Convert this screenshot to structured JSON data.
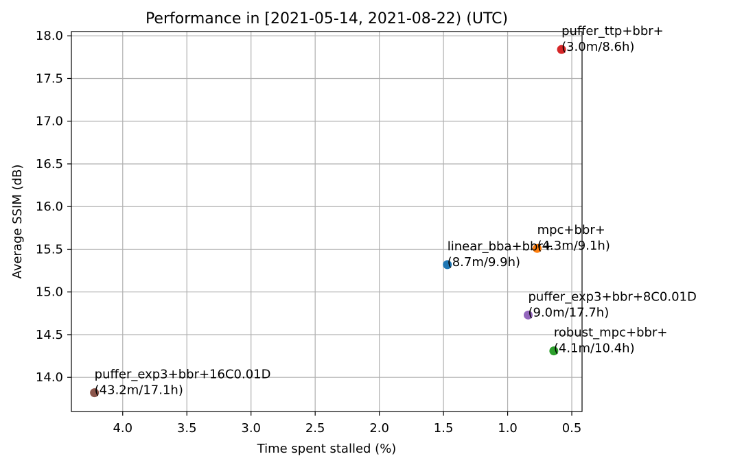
{
  "chart_data": {
    "type": "scatter",
    "title": "Performance in [2021-05-14, 2021-08-22) (UTC)",
    "xlabel": "Time spent stalled (%)",
    "ylabel": "Average SSIM (dB)",
    "x_inverted": true,
    "xlim": [
      4.4,
      0.42
    ],
    "ylim": [
      13.6,
      18.05
    ],
    "x_ticks": [
      4.0,
      3.5,
      3.0,
      2.5,
      2.0,
      1.5,
      1.0,
      0.5
    ],
    "x_tick_labels": [
      "4.0",
      "3.5",
      "3.0",
      "2.5",
      "2.0",
      "1.5",
      "1.0",
      "0.5"
    ],
    "y_ticks": [
      14.0,
      14.5,
      15.0,
      15.5,
      16.0,
      16.5,
      17.0,
      17.5,
      18.0
    ],
    "y_tick_labels": [
      "14.0",
      "14.5",
      "15.0",
      "15.5",
      "16.0",
      "16.5",
      "17.0",
      "17.5",
      "18.0"
    ],
    "grid": true,
    "points": [
      {
        "name": "puffer_ttp+bbr+",
        "detail": "(3.0m/8.6h)",
        "x": 0.58,
        "y": 17.84,
        "color": "#d62728"
      },
      {
        "name": "mpc+bbr+",
        "detail": "(4.3m/9.1h)",
        "x": 0.77,
        "y": 15.51,
        "color": "#ff7f0e"
      },
      {
        "name": "linear_bba+bbr+",
        "detail": "(8.7m/9.9h)",
        "x": 1.47,
        "y": 15.32,
        "color": "#1f77b4"
      },
      {
        "name": "puffer_exp3+bbr+8C0.01D",
        "detail": "(9.0m/17.7h)",
        "x": 0.84,
        "y": 14.73,
        "color": "#9467bd"
      },
      {
        "name": "robust_mpc+bbr+",
        "detail": "(4.1m/10.4h)",
        "x": 0.64,
        "y": 14.31,
        "color": "#2ca02c"
      },
      {
        "name": "puffer_exp3+bbr+16C0.01D",
        "detail": "(43.2m/17.1h)",
        "x": 4.22,
        "y": 13.82,
        "color": "#8c564b"
      }
    ]
  }
}
